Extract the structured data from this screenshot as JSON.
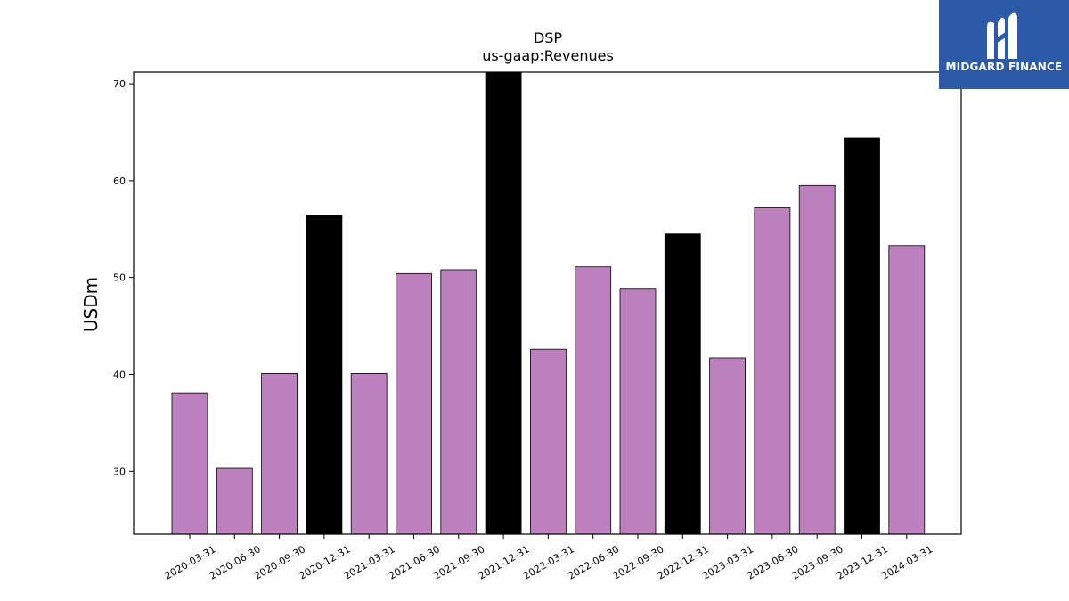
{
  "chart_data": {
    "type": "bar",
    "title": "DSP",
    "subtitle": "us-gaap:Revenues",
    "xlabel": "",
    "ylabel": "USDm",
    "ylim": [
      23.5,
      71.2
    ],
    "yticks": [
      30,
      40,
      50,
      60,
      70
    ],
    "grid": false,
    "categories": [
      "2020-03-31",
      "2020-06-30",
      "2020-09-30",
      "2020-12-31",
      "2021-03-31",
      "2021-06-30",
      "2021-09-30",
      "2021-12-31",
      "2022-03-31",
      "2022-06-30",
      "2022-09-30",
      "2022-12-31",
      "2023-03-31",
      "2023-06-30",
      "2023-09-30",
      "2023-12-31",
      "2024-03-31"
    ],
    "values": [
      38.1,
      30.3,
      40.1,
      56.4,
      40.1,
      50.4,
      50.8,
      71.2,
      42.6,
      51.1,
      48.8,
      54.5,
      41.7,
      57.2,
      59.5,
      64.4,
      53.3
    ],
    "bar_colors": [
      "#bb80bd",
      "#bb80bd",
      "#bb80bd",
      "#000000",
      "#bb80bd",
      "#bb80bd",
      "#bb80bd",
      "#000000",
      "#bb80bd",
      "#bb80bd",
      "#bb80bd",
      "#000000",
      "#bb80bd",
      "#bb80bd",
      "#bb80bd",
      "#000000",
      "#bb80bd"
    ]
  },
  "logo": {
    "text": "MIDGARD FINANCE",
    "icon": "midgard-m-icon",
    "background": "#2d5aa8"
  }
}
